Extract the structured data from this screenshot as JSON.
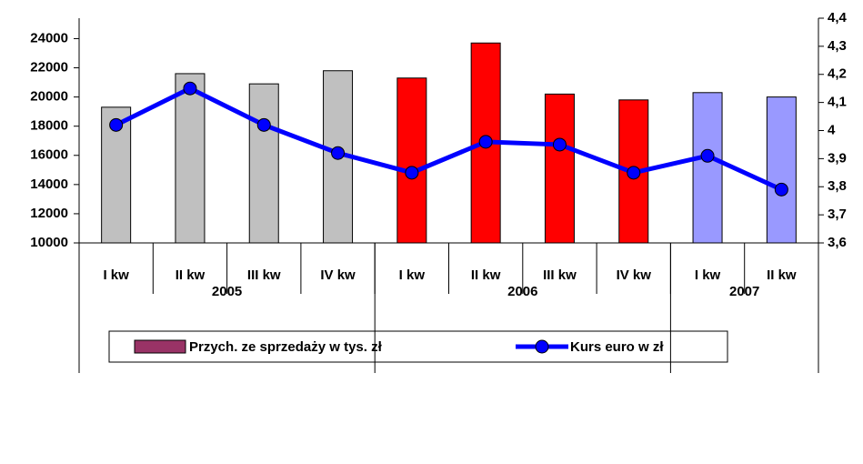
{
  "chart_data": {
    "type": "bar_line",
    "categories": [
      "I kw",
      "II kw",
      "III kw",
      "IV kw",
      "I kw",
      "II kw",
      "III kw",
      "IV kw",
      "I kw",
      "II kw"
    ],
    "groups": [
      {
        "label": "2005",
        "size": 4,
        "color": "#c0c0c0"
      },
      {
        "label": "2006",
        "size": 4,
        "color": "#ff0000"
      },
      {
        "label": "2007",
        "size": 2,
        "color": "#9999ff"
      }
    ],
    "series": [
      {
        "name": "Przych. ze sprzedaży w tys. zł",
        "type": "bar",
        "color": "#993366",
        "values": [
          19300,
          21600,
          20900,
          21800,
          21300,
          23700,
          20200,
          19800,
          20300,
          20000
        ]
      },
      {
        "name": "Kurs euro w zł",
        "type": "line",
        "axis": "y2",
        "color": "#0000ff",
        "values": [
          4.02,
          4.15,
          4.02,
          3.92,
          3.85,
          3.96,
          3.95,
          3.85,
          3.91,
          3.79
        ]
      }
    ],
    "ylim": [
      10000,
      25400
    ],
    "yticks": [
      10000,
      12000,
      14000,
      16000,
      18000,
      20000,
      22000,
      24000
    ],
    "y2lim": [
      3.6,
      4.4
    ],
    "y2ticks": [
      {
        "value": 3.6,
        "label": "3,6"
      },
      {
        "value": 3.7,
        "label": "3,7"
      },
      {
        "value": 3.8,
        "label": "3,8"
      },
      {
        "value": 3.9,
        "label": "3,9"
      },
      4,
      {
        "value": 4.1,
        "label": "4,1"
      },
      {
        "value": 4.2,
        "label": "4,2"
      },
      {
        "value": 4.3,
        "label": "4,3"
      },
      {
        "value": 4.4,
        "label": "4,4"
      }
    ]
  }
}
